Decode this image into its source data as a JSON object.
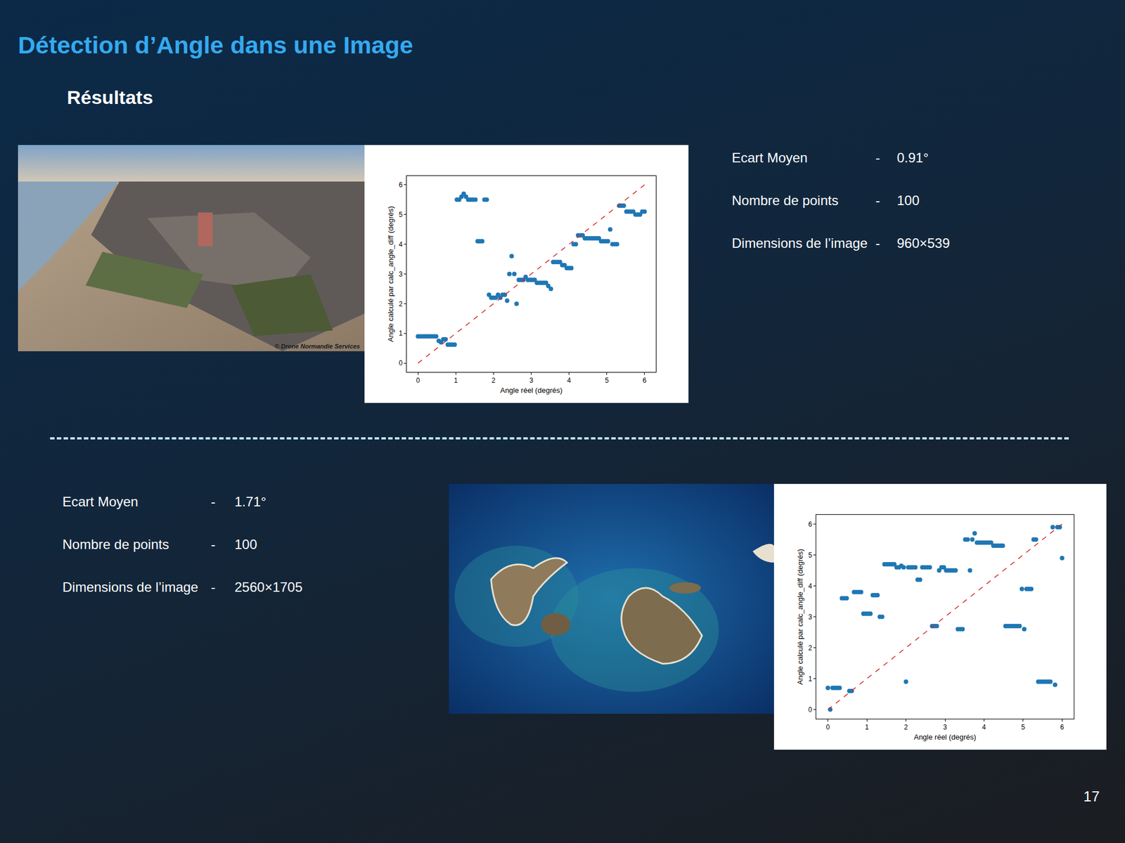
{
  "slide": {
    "title": "Détection d’Angle dans une Image",
    "subtitle": "Résultats",
    "page": "17"
  },
  "results": [
    {
      "stats": [
        {
          "label": "Ecart Moyen",
          "separator": "-",
          "value": "0.91°"
        },
        {
          "label": "Nombre de points",
          "separator": "-",
          "value": "100"
        },
        {
          "label": "Dimensions de l’image",
          "separator": "-",
          "value": "960×539"
        }
      ],
      "photo_caption": "© Drone Normandie Services"
    },
    {
      "stats": [
        {
          "label": "Ecart Moyen",
          "separator": "-",
          "value": "1.71°"
        },
        {
          "label": "Nombre de points",
          "separator": "-",
          "value": "100"
        },
        {
          "label": "Dimensions de l’image",
          "separator": "-",
          "value": "2560×1705"
        }
      ]
    }
  ],
  "chart_data": [
    {
      "type": "scatter",
      "x_label": "Angle réel (degrés)",
      "y_label": "Angle calculé par calc_angle_diff (degrés)",
      "xlim": [
        -0.3,
        6.3
      ],
      "ylim": [
        -0.3,
        6.3
      ],
      "xticks": [
        0,
        1,
        2,
        3,
        4,
        5,
        6
      ],
      "yticks": [
        0,
        1,
        2,
        3,
        4,
        5,
        6
      ],
      "grid": false,
      "series": [
        {
          "type": "scatter",
          "color": "#1f77b4",
          "marker": "circle",
          "x": [
            0,
            0.06,
            0.12,
            0.18,
            0.24,
            0.3,
            0.36,
            0.42,
            0.48,
            0.55,
            0.61,
            0.67,
            0.73,
            0.79,
            0.85,
            0.91,
            0.97,
            1.03,
            1.09,
            1.15,
            1.21,
            1.27,
            1.33,
            1.39,
            1.45,
            1.52,
            1.58,
            1.64,
            1.7,
            1.76,
            1.82,
            1.88,
            1.94,
            2.0,
            2.06,
            2.12,
            2.18,
            2.24,
            2.3,
            2.36,
            2.42,
            2.48,
            2.55,
            2.61,
            2.67,
            2.73,
            2.79,
            2.85,
            2.91,
            2.97,
            3.03,
            3.09,
            3.15,
            3.21,
            3.27,
            3.33,
            3.39,
            3.45,
            3.52,
            3.58,
            3.64,
            3.7,
            3.76,
            3.82,
            3.88,
            3.94,
            4.0,
            4.06,
            4.12,
            4.18,
            4.24,
            4.3,
            4.36,
            4.42,
            4.48,
            4.55,
            4.61,
            4.67,
            4.73,
            4.79,
            4.85,
            4.91,
            4.97,
            5.03,
            5.09,
            5.15,
            5.21,
            5.27,
            5.33,
            5.39,
            5.45,
            5.52,
            5.58,
            5.64,
            5.7,
            5.76,
            5.82,
            5.88,
            5.94,
            6.0
          ],
          "values": [
            0.9,
            0.9,
            0.9,
            0.9,
            0.9,
            0.9,
            0.9,
            0.9,
            0.9,
            0.75,
            0.7,
            0.8,
            0.8,
            0.62,
            0.62,
            0.62,
            0.62,
            5.5,
            5.5,
            5.6,
            5.7,
            5.6,
            5.5,
            5.5,
            5.5,
            5.5,
            4.1,
            4.1,
            4.1,
            5.5,
            5.5,
            2.3,
            2.2,
            2.2,
            2.2,
            2.3,
            2.2,
            2.3,
            2.3,
            2.1,
            3.0,
            3.6,
            3.0,
            2.0,
            2.8,
            2.8,
            2.8,
            2.9,
            2.8,
            2.8,
            2.8,
            2.8,
            2.7,
            2.7,
            2.7,
            2.7,
            2.7,
            2.6,
            2.5,
            3.4,
            3.4,
            3.4,
            3.4,
            3.3,
            3.3,
            3.2,
            3.2,
            3.2,
            4.0,
            4.0,
            4.3,
            4.3,
            4.3,
            4.2,
            4.2,
            4.2,
            4.2,
            4.2,
            4.2,
            4.2,
            4.1,
            4.1,
            4.1,
            4.1,
            4.5,
            4.0,
            4.0,
            4.0,
            5.3,
            5.3,
            5.3,
            5.1,
            5.1,
            5.1,
            5.1,
            5.0,
            5.0,
            5.0,
            5.1,
            5.1
          ]
        },
        {
          "type": "line",
          "color": "#d62728",
          "line_style": "dashed",
          "x": [
            0,
            6
          ],
          "values": [
            0,
            6
          ]
        }
      ]
    },
    {
      "type": "scatter",
      "x_label": "Angle réel (degrés)",
      "y_label": "Angle calculé par calc_angle_diff (degrés)",
      "xlim": [
        -0.3,
        6.3
      ],
      "ylim": [
        -0.3,
        6.3
      ],
      "xticks": [
        0,
        1,
        2,
        3,
        4,
        5,
        6
      ],
      "yticks": [
        0,
        1,
        2,
        3,
        4,
        5,
        6
      ],
      "grid": false,
      "series": [
        {
          "type": "scatter",
          "color": "#1f77b4",
          "marker": "circle",
          "x": [
            0,
            0.06,
            0.12,
            0.18,
            0.24,
            0.3,
            0.36,
            0.42,
            0.48,
            0.55,
            0.61,
            0.67,
            0.73,
            0.79,
            0.85,
            0.91,
            0.97,
            1.03,
            1.09,
            1.15,
            1.21,
            1.27,
            1.33,
            1.39,
            1.45,
            1.52,
            1.58,
            1.64,
            1.7,
            1.76,
            1.82,
            1.88,
            1.94,
            2.0,
            2.06,
            2.12,
            2.18,
            2.24,
            2.3,
            2.36,
            2.42,
            2.48,
            2.55,
            2.61,
            2.67,
            2.73,
            2.79,
            2.85,
            2.91,
            2.97,
            3.03,
            3.09,
            3.15,
            3.21,
            3.27,
            3.33,
            3.39,
            3.45,
            3.52,
            3.58,
            3.64,
            3.7,
            3.76,
            3.82,
            3.88,
            3.94,
            4.0,
            4.06,
            4.12,
            4.18,
            4.24,
            4.3,
            4.36,
            4.42,
            4.48,
            4.55,
            4.61,
            4.67,
            4.73,
            4.79,
            4.85,
            4.91,
            4.97,
            5.03,
            5.09,
            5.15,
            5.21,
            5.27,
            5.33,
            5.39,
            5.45,
            5.52,
            5.58,
            5.64,
            5.7,
            5.76,
            5.82,
            5.88,
            5.94,
            6.0
          ],
          "values": [
            0.7,
            0,
            0.7,
            0.7,
            0.7,
            0.7,
            3.6,
            3.6,
            3.6,
            0.6,
            0.6,
            3.8,
            3.8,
            3.8,
            3.8,
            3.1,
            3.1,
            3.1,
            3.1,
            3.7,
            3.7,
            3.7,
            3.0,
            3.0,
            4.7,
            4.7,
            4.7,
            4.7,
            4.7,
            4.6,
            4.6,
            4.65,
            4.6,
            0.9,
            4.6,
            4.6,
            4.6,
            4.6,
            4.2,
            4.2,
            4.6,
            4.6,
            4.6,
            4.6,
            2.7,
            2.7,
            2.7,
            4.5,
            4.6,
            4.6,
            4.5,
            4.5,
            4.5,
            4.5,
            4.5,
            2.6,
            2.6,
            2.6,
            5.5,
            5.5,
            4.5,
            5.5,
            5.7,
            5.4,
            5.4,
            5.4,
            5.4,
            5.4,
            5.4,
            5.4,
            5.3,
            5.3,
            5.3,
            5.3,
            5.3,
            2.7,
            2.7,
            2.7,
            2.7,
            2.7,
            2.7,
            2.7,
            3.9,
            2.6,
            3.9,
            3.9,
            3.9,
            5.5,
            5.5,
            0.9,
            0.9,
            0.9,
            0.9,
            0.9,
            0.9,
            5.9,
            0.8,
            5.9,
            5.9,
            4.9
          ]
        },
        {
          "type": "line",
          "color": "#d62728",
          "line_style": "dashed",
          "x": [
            0,
            6
          ],
          "values": [
            0,
            6
          ]
        }
      ]
    }
  ]
}
